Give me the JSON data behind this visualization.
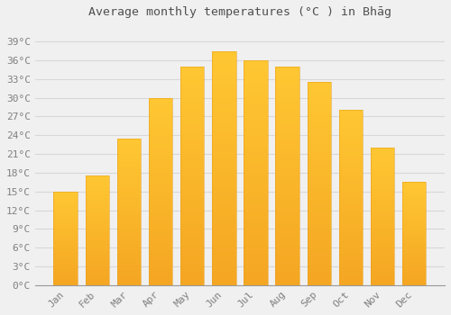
{
  "title": "Average monthly temperatures (°C ) in Bhāg",
  "months": [
    "Jan",
    "Feb",
    "Mar",
    "Apr",
    "May",
    "Jun",
    "Jul",
    "Aug",
    "Sep",
    "Oct",
    "Nov",
    "Dec"
  ],
  "values": [
    15,
    17.5,
    23.5,
    30,
    35,
    37.5,
    36,
    35,
    32.5,
    28,
    22,
    16.5
  ],
  "bar_color_top": "#FFC033",
  "bar_color_bottom": "#F5A623",
  "bar_edge_color": "#E8A020",
  "background_color": "#F0F0F0",
  "grid_color": "#D8D8D8",
  "ylim": [
    0,
    42
  ],
  "yticks": [
    0,
    3,
    6,
    9,
    12,
    15,
    18,
    21,
    24,
    27,
    30,
    33,
    36,
    39
  ],
  "ytick_labels": [
    "0°C",
    "3°C",
    "6°C",
    "9°C",
    "12°C",
    "15°C",
    "18°C",
    "21°C",
    "24°C",
    "27°C",
    "30°C",
    "33°C",
    "36°C",
    "39°C"
  ],
  "title_fontsize": 9.5,
  "tick_fontsize": 8,
  "tick_color": "#808080",
  "bar_width": 0.75
}
